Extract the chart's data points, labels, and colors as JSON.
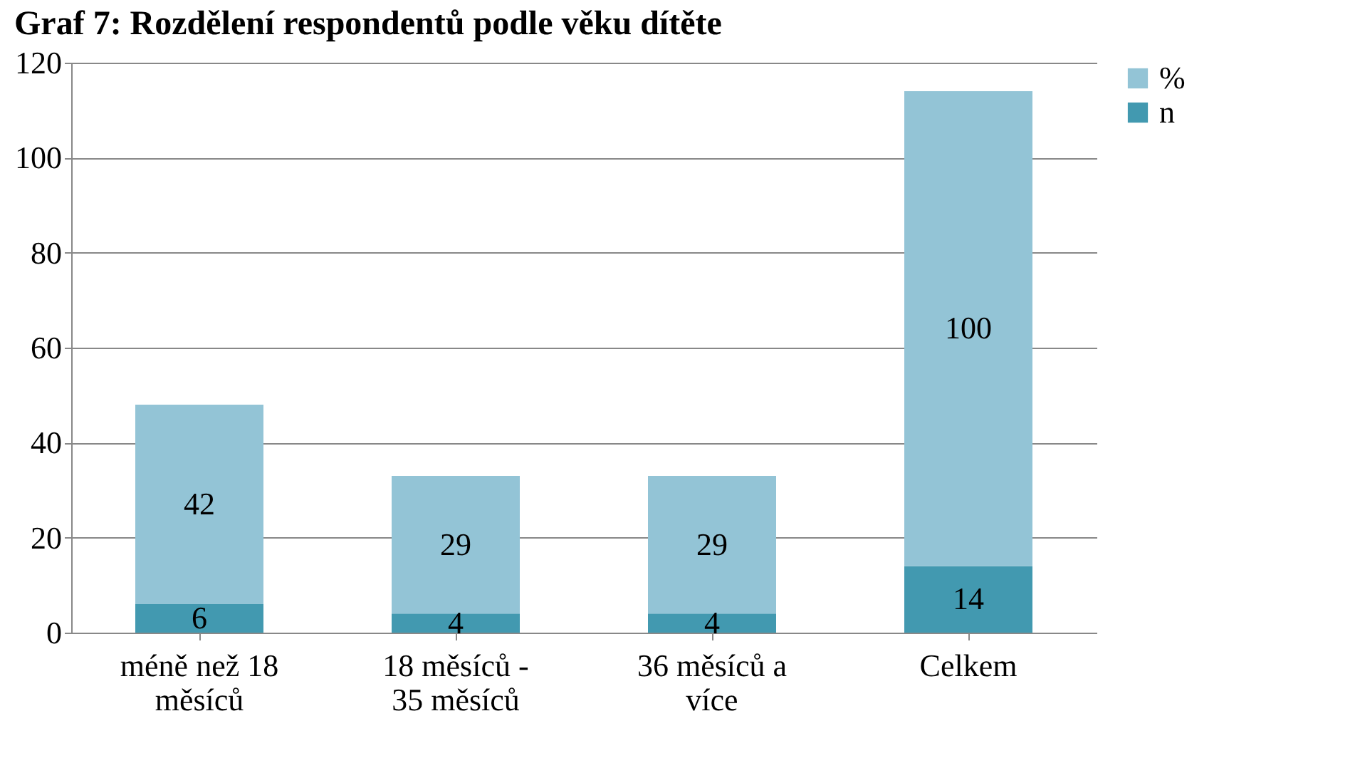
{
  "chart_data": {
    "type": "bar",
    "title": "Graf 7: Rozdělení respondentů podle věku dítěte",
    "categories": [
      "méně než 18 měsíců",
      "18 měsíců - 35 měsíců",
      "36 měsíců a více",
      "Celkem"
    ],
    "series": [
      {
        "name": "n",
        "color": "#4299b0",
        "values": [
          6,
          4,
          4,
          14
        ]
      },
      {
        "name": "%",
        "color": "#93c4d6",
        "values": [
          42,
          29,
          29,
          100
        ]
      }
    ],
    "stacked": true,
    "data_labels": true,
    "grid": "y",
    "legend": "right",
    "ylim": [
      0,
      120
    ],
    "yticks": [
      0,
      20,
      40,
      60,
      80,
      100,
      120
    ]
  }
}
